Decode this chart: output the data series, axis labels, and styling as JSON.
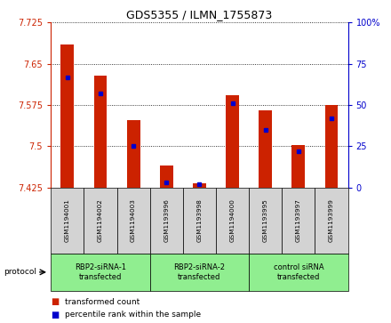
{
  "title": "GDS5355 / ILMN_1755873",
  "samples": [
    "GSM1194001",
    "GSM1194002",
    "GSM1194003",
    "GSM1193996",
    "GSM1193998",
    "GSM1194000",
    "GSM1193995",
    "GSM1193997",
    "GSM1193999"
  ],
  "red_values": [
    7.685,
    7.628,
    7.548,
    7.465,
    7.432,
    7.593,
    7.565,
    7.502,
    7.575
  ],
  "blue_percentiles": [
    67,
    57,
    25,
    3,
    2,
    51,
    35,
    22,
    42
  ],
  "ylim_left": [
    7.425,
    7.725
  ],
  "ylim_right": [
    0,
    100
  ],
  "yticks_left": [
    7.425,
    7.5,
    7.575,
    7.65,
    7.725
  ],
  "yticks_right": [
    0,
    25,
    50,
    75,
    100
  ],
  "groups": [
    {
      "label": "RBP2-siRNA-1\ntransfected",
      "start": 0,
      "end": 3,
      "color": "#90EE90"
    },
    {
      "label": "RBP2-siRNA-2\ntransfected",
      "start": 3,
      "end": 6,
      "color": "#90EE90"
    },
    {
      "label": "control siRNA\ntransfected",
      "start": 6,
      "end": 9,
      "color": "#90EE90"
    }
  ],
  "left_axis_color": "#CC2200",
  "right_axis_color": "#0000CC",
  "bar_color": "#CC2200",
  "blue_color": "#0000CC",
  "bar_width": 0.4,
  "background_color": "#ffffff",
  "plot_bg": "#ffffff",
  "sample_cell_color": "#D3D3D3"
}
